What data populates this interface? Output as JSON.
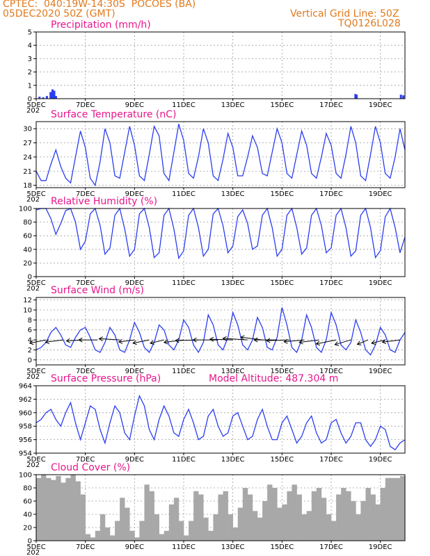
{
  "header": {
    "line1": "CPTEC:  040:19W-14:30S  POCOES (BA)",
    "line2": "05DEC2020 50Z (GMT)",
    "right1": "Vertical Grid Line: 50Z",
    "right2": "TQ0126L028"
  },
  "colors": {
    "header": "#e07a1f",
    "title": "#e8168c",
    "line": "#2a3df0",
    "cloud": "#a8a8a8",
    "wind_arrow": "#000000"
  },
  "x_axis": {
    "day_start": 5,
    "day_end": 20,
    "tick_labels": [
      "5DEC",
      "7DEC",
      "9DEC",
      "11DEC",
      "13DEC",
      "15DEC",
      "17DEC",
      "19DEC"
    ],
    "tick_days": [
      5,
      7,
      9,
      11,
      13,
      15,
      17,
      19
    ],
    "year_fragment": "202"
  },
  "chart_data": [
    {
      "id": "precip",
      "type": "bar",
      "title": "Precipitation (mm/h)",
      "ylim": [
        0,
        5
      ],
      "yticks": [
        0,
        1,
        2,
        3,
        4,
        5
      ],
      "x": [
        5.15,
        5.3,
        5.45,
        5.6,
        5.68,
        5.75,
        5.82,
        18.0,
        18.05,
        19.85,
        19.95
      ],
      "values": [
        0.15,
        0.1,
        0.2,
        0.5,
        0.7,
        0.6,
        0.2,
        0.35,
        0.3,
        0.3,
        0.25
      ]
    },
    {
      "id": "temp",
      "type": "line",
      "title": "Surface Temperature (nC)",
      "ylim": [
        17.5,
        31.5
      ],
      "yticks": [
        18,
        21,
        24,
        27,
        30
      ],
      "x": [
        5.0,
        5.2,
        5.4,
        5.6,
        5.8,
        6.0,
        6.2,
        6.4,
        6.6,
        6.8,
        7.0,
        7.2,
        7.4,
        7.6,
        7.8,
        8.0,
        8.2,
        8.4,
        8.6,
        8.8,
        9.0,
        9.2,
        9.4,
        9.6,
        9.8,
        10.0,
        10.2,
        10.4,
        10.6,
        10.8,
        11.0,
        11.2,
        11.4,
        11.6,
        11.8,
        12.0,
        12.2,
        12.4,
        12.6,
        12.8,
        13.0,
        13.2,
        13.4,
        13.6,
        13.8,
        14.0,
        14.2,
        14.4,
        14.6,
        14.8,
        15.0,
        15.2,
        15.4,
        15.6,
        15.8,
        16.0,
        16.2,
        16.4,
        16.6,
        16.8,
        17.0,
        17.2,
        17.4,
        17.6,
        17.8,
        18.0,
        18.2,
        18.4,
        18.6,
        18.8,
        19.0,
        19.2,
        19.4,
        19.6,
        19.8,
        20.0
      ],
      "values": [
        21.0,
        19.0,
        19.0,
        22.5,
        25.5,
        22.0,
        19.5,
        18.5,
        24.0,
        29.5,
        26.0,
        19.5,
        18.0,
        23.0,
        30.0,
        27.0,
        20.0,
        19.5,
        25.0,
        30.5,
        26.5,
        20.0,
        19.0,
        24.5,
        30.5,
        28.5,
        20.5,
        19.0,
        25.0,
        31.0,
        27.5,
        20.5,
        19.5,
        24.0,
        30.0,
        27.0,
        20.0,
        19.0,
        23.5,
        29.0,
        26.0,
        20.0,
        20.0,
        24.0,
        28.5,
        26.0,
        20.5,
        20.0,
        25.0,
        30.0,
        27.0,
        20.5,
        19.5,
        24.5,
        29.5,
        26.5,
        20.5,
        19.5,
        24.0,
        29.0,
        26.5,
        20.5,
        19.5,
        24.5,
        30.5,
        27.0,
        20.0,
        19.0,
        24.5,
        30.5,
        27.0,
        20.5,
        19.5,
        24.0,
        30.0,
        25.5
      ]
    },
    {
      "id": "rh",
      "type": "line",
      "title": "Relative Humidity (%)",
      "ylim": [
        0,
        100
      ],
      "yticks": [
        0,
        20,
        40,
        60,
        80,
        100
      ],
      "x": [
        5.0,
        5.2,
        5.4,
        5.6,
        5.8,
        6.0,
        6.2,
        6.4,
        6.6,
        6.8,
        7.0,
        7.2,
        7.4,
        7.6,
        7.8,
        8.0,
        8.2,
        8.4,
        8.6,
        8.8,
        9.0,
        9.2,
        9.4,
        9.6,
        9.8,
        10.0,
        10.2,
        10.4,
        10.6,
        10.8,
        11.0,
        11.2,
        11.4,
        11.6,
        11.8,
        12.0,
        12.2,
        12.4,
        12.6,
        12.8,
        13.0,
        13.2,
        13.4,
        13.6,
        13.8,
        14.0,
        14.2,
        14.4,
        14.6,
        14.8,
        15.0,
        15.2,
        15.4,
        15.6,
        15.8,
        16.0,
        16.2,
        16.4,
        16.6,
        16.8,
        17.0,
        17.2,
        17.4,
        17.6,
        17.8,
        18.0,
        18.2,
        18.4,
        18.6,
        18.8,
        19.0,
        19.2,
        19.4,
        19.6,
        19.8,
        20.0
      ],
      "values": [
        98,
        100,
        100,
        85,
        62,
        78,
        97,
        100,
        80,
        40,
        52,
        92,
        100,
        75,
        33,
        42,
        90,
        100,
        70,
        30,
        40,
        92,
        100,
        72,
        28,
        35,
        90,
        100,
        70,
        27,
        38,
        90,
        100,
        72,
        30,
        40,
        92,
        100,
        75,
        35,
        45,
        88,
        98,
        78,
        40,
        45,
        90,
        100,
        72,
        30,
        40,
        90,
        100,
        72,
        33,
        42,
        90,
        100,
        75,
        35,
        42,
        90,
        100,
        72,
        30,
        38,
        90,
        100,
        72,
        28,
        38,
        88,
        100,
        72,
        35,
        58
      ]
    },
    {
      "id": "wind",
      "type": "line",
      "title": "Surface Wind (m/s)",
      "ylim": [
        -1,
        12.5
      ],
      "yticks": [
        0,
        2,
        4,
        6,
        8,
        10,
        12
      ],
      "x": [
        5.0,
        5.2,
        5.4,
        5.6,
        5.8,
        6.0,
        6.2,
        6.4,
        6.6,
        6.8,
        7.0,
        7.2,
        7.4,
        7.6,
        7.8,
        8.0,
        8.2,
        8.4,
        8.6,
        8.8,
        9.0,
        9.2,
        9.4,
        9.6,
        9.8,
        10.0,
        10.2,
        10.4,
        10.6,
        10.8,
        11.0,
        11.2,
        11.4,
        11.6,
        11.8,
        12.0,
        12.2,
        12.4,
        12.6,
        12.8,
        13.0,
        13.2,
        13.4,
        13.6,
        13.8,
        14.0,
        14.2,
        14.4,
        14.6,
        14.8,
        15.0,
        15.2,
        15.4,
        15.6,
        15.8,
        16.0,
        16.2,
        16.4,
        16.6,
        16.8,
        17.0,
        17.2,
        17.4,
        17.6,
        17.8,
        18.0,
        18.2,
        18.4,
        18.6,
        18.8,
        19.0,
        19.2,
        19.4,
        19.6,
        19.8,
        20.0
      ],
      "values": [
        2.0,
        2.5,
        3.5,
        5.5,
        6.5,
        5.0,
        3.0,
        2.5,
        4.5,
        6.0,
        6.5,
        4.5,
        2.0,
        1.5,
        3.5,
        6.5,
        5.0,
        2.0,
        1.5,
        4.0,
        7.5,
        5.5,
        2.5,
        1.5,
        3.5,
        7.0,
        6.0,
        3.0,
        2.0,
        4.0,
        8.0,
        6.5,
        3.0,
        1.5,
        3.5,
        9.0,
        7.0,
        3.0,
        2.0,
        4.5,
        9.5,
        7.0,
        3.0,
        2.0,
        4.0,
        8.5,
        6.5,
        2.5,
        2.0,
        4.5,
        10.5,
        7.0,
        2.5,
        1.5,
        4.0,
        9.0,
        6.5,
        2.5,
        1.5,
        4.0,
        9.5,
        7.0,
        3.0,
        2.0,
        3.5,
        8.0,
        5.5,
        2.0,
        1.0,
        3.0,
        6.5,
        5.0,
        2.0,
        1.5,
        4.0,
        5.5
      ],
      "arrows": {
        "days": [
          5.4,
          6.1,
          6.9,
          7.5,
          8.4,
          9.0,
          9.6,
          10.2,
          11.0,
          11.6,
          12.4,
          13.0,
          13.6,
          14.2,
          14.8,
          15.3,
          15.9,
          16.5,
          17.2,
          17.8,
          18.5,
          19.2,
          19.8
        ],
        "dir_deg": [
          210,
          200,
          190,
          180,
          170,
          200,
          210,
          215,
          200,
          185,
          180,
          175,
          170,
          160,
          180,
          185,
          195,
          200,
          210,
          220,
          230,
          215,
          200
        ],
        "speed": [
          4.5,
          4.5,
          4.0,
          4.5,
          5.0,
          4.0,
          4.5,
          4.0,
          5.0,
          5.5,
          6.0,
          5.5,
          6.0,
          5.5,
          5.5,
          5.5,
          5.0,
          5.0,
          5.5,
          5.0,
          4.0,
          4.0,
          4.5
        ]
      }
    },
    {
      "id": "pres",
      "type": "line",
      "title": "Surface Pressure (hPa)",
      "subtitle": "Model Altitude: 487.304 m",
      "ylim": [
        954,
        964
      ],
      "yticks": [
        954,
        956,
        958,
        960,
        962,
        964
      ],
      "x": [
        5.0,
        5.2,
        5.4,
        5.6,
        5.8,
        6.0,
        6.2,
        6.4,
        6.6,
        6.8,
        7.0,
        7.2,
        7.4,
        7.6,
        7.8,
        8.0,
        8.2,
        8.4,
        8.6,
        8.8,
        9.0,
        9.2,
        9.4,
        9.6,
        9.8,
        10.0,
        10.2,
        10.4,
        10.6,
        10.8,
        11.0,
        11.2,
        11.4,
        11.6,
        11.8,
        12.0,
        12.2,
        12.4,
        12.6,
        12.8,
        13.0,
        13.2,
        13.4,
        13.6,
        13.8,
        14.0,
        14.2,
        14.4,
        14.6,
        14.8,
        15.0,
        15.2,
        15.4,
        15.6,
        15.8,
        16.0,
        16.2,
        16.4,
        16.6,
        16.8,
        17.0,
        17.2,
        17.4,
        17.6,
        17.8,
        18.0,
        18.2,
        18.4,
        18.6,
        18.8,
        19.0,
        19.2,
        19.4,
        19.6,
        19.8,
        20.0
      ],
      "values": [
        958.5,
        959.0,
        960.0,
        960.5,
        959.0,
        958.0,
        960.0,
        961.5,
        958.5,
        956.0,
        958.5,
        961.0,
        960.5,
        957.5,
        955.5,
        958.5,
        961.0,
        960.0,
        957.0,
        956.0,
        959.5,
        962.5,
        961.0,
        957.5,
        956.0,
        959.0,
        961.0,
        959.5,
        957.0,
        956.5,
        959.0,
        960.5,
        958.5,
        956.0,
        956.5,
        959.5,
        960.5,
        958.0,
        956.5,
        957.0,
        959.5,
        960.0,
        958.0,
        956.0,
        956.5,
        959.0,
        960.5,
        958.0,
        956.0,
        956.0,
        958.5,
        959.5,
        957.5,
        955.5,
        956.5,
        958.5,
        959.5,
        957.0,
        955.5,
        956.0,
        958.5,
        959.0,
        957.0,
        955.5,
        956.5,
        958.5,
        958.5,
        956.0,
        955.0,
        956.0,
        958.0,
        957.5,
        955.0,
        954.5,
        955.5,
        956.0
      ]
    },
    {
      "id": "cloud",
      "type": "area",
      "title": "Cloud Cover (%)",
      "ylim": [
        0,
        100
      ],
      "yticks": [
        0,
        20,
        40,
        60,
        80,
        100
      ],
      "x": [
        5.0,
        5.2,
        5.4,
        5.6,
        5.8,
        6.0,
        6.2,
        6.4,
        6.6,
        6.8,
        7.0,
        7.2,
        7.4,
        7.6,
        7.8,
        8.0,
        8.2,
        8.4,
        8.6,
        8.8,
        9.0,
        9.2,
        9.4,
        9.6,
        9.8,
        10.0,
        10.2,
        10.4,
        10.6,
        10.8,
        11.0,
        11.2,
        11.4,
        11.6,
        11.8,
        12.0,
        12.2,
        12.4,
        12.6,
        12.8,
        13.0,
        13.2,
        13.4,
        13.6,
        13.8,
        14.0,
        14.2,
        14.4,
        14.6,
        14.8,
        15.0,
        15.2,
        15.4,
        15.6,
        15.8,
        16.0,
        16.2,
        16.4,
        16.6,
        16.8,
        17.0,
        17.2,
        17.4,
        17.6,
        17.8,
        18.0,
        18.2,
        18.4,
        18.6,
        18.8,
        19.0,
        19.2,
        19.4,
        19.6,
        19.8,
        20.0
      ],
      "values": [
        95,
        100,
        95,
        92,
        98,
        88,
        95,
        100,
        90,
        70,
        10,
        5,
        15,
        40,
        20,
        8,
        30,
        65,
        50,
        15,
        5,
        30,
        85,
        75,
        40,
        10,
        15,
        55,
        65,
        30,
        8,
        30,
        75,
        70,
        35,
        15,
        40,
        70,
        75,
        40,
        20,
        50,
        80,
        70,
        45,
        35,
        60,
        85,
        80,
        50,
        55,
        75,
        85,
        70,
        40,
        45,
        75,
        80,
        65,
        40,
        30,
        70,
        80,
        75,
        60,
        40,
        60,
        80,
        70,
        55,
        80,
        95,
        95,
        95,
        98,
        98
      ]
    }
  ]
}
